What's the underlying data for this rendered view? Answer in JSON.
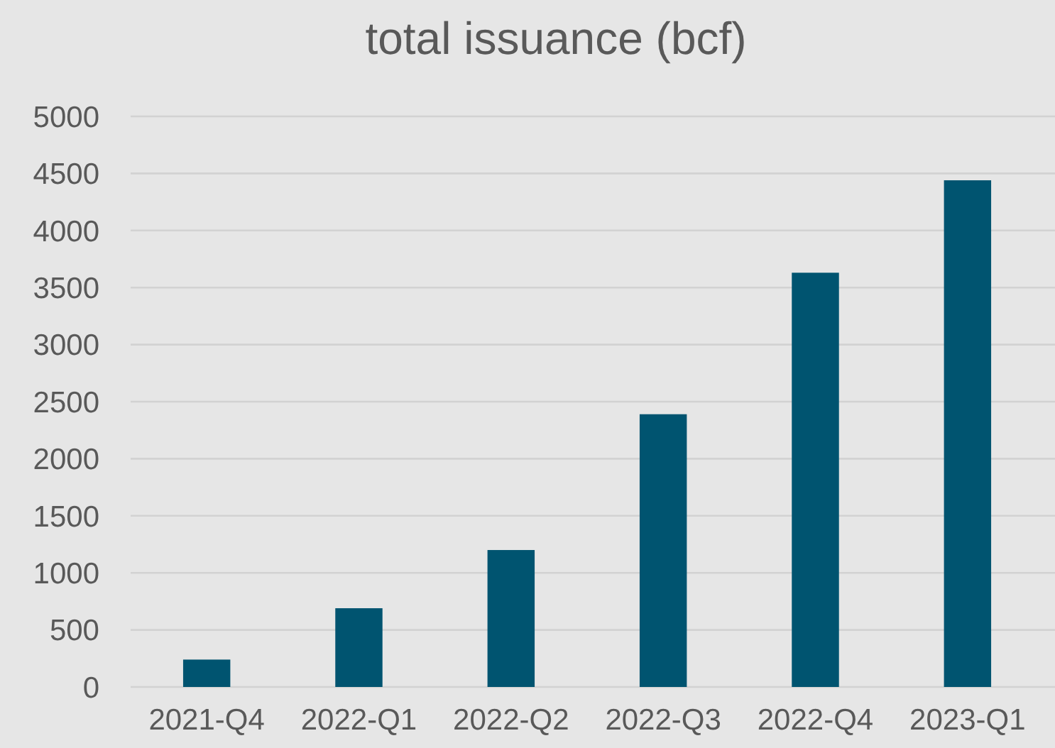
{
  "chart_data": {
    "type": "bar",
    "title": "total issuance (bcf)",
    "categories": [
      "2021-Q4",
      "2022-Q1",
      "2022-Q2",
      "2022-Q3",
      "2022-Q4",
      "2023-Q1"
    ],
    "values": [
      240,
      690,
      1200,
      2390,
      3630,
      4440
    ],
    "color": "#005470",
    "ylim": [
      0,
      5000
    ],
    "yticks": [
      0,
      500,
      1000,
      1500,
      2000,
      2500,
      3000,
      3500,
      4000,
      4500,
      5000
    ],
    "grid": "y"
  }
}
